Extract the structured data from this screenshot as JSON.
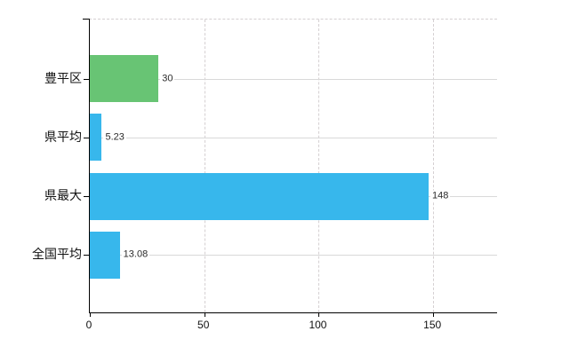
{
  "chart_data": {
    "type": "bar",
    "orientation": "horizontal",
    "title": "",
    "xlabel": "",
    "ylabel": "",
    "categories": [
      "豊平区",
      "県平均",
      "県最大",
      "全国平均"
    ],
    "values": [
      30,
      5.23,
      148,
      13.08
    ],
    "value_labels": [
      "30",
      "5.23",
      "148",
      "13.08"
    ],
    "bar_colors": [
      "#68c474",
      "#37b7ec",
      "#37b7ec",
      "#37b7ec"
    ],
    "xlim": [
      0,
      177.5
    ],
    "x_ticks": [
      0,
      50,
      100,
      150
    ],
    "x_tick_labels": [
      "0",
      "50",
      "100",
      "150"
    ],
    "grid": "dashed vertical gridlines at x ticks, dashed top boundary, solid light leader line per category row",
    "legend": "none",
    "background": "#ffffff"
  },
  "colors": {
    "axis": "#000000",
    "grid_dashed": "#d5d0d2",
    "row_line": "#d9d9d9",
    "value_text": "#2b2b2b",
    "label_text": "#111111",
    "green_bar": "#68c474",
    "blue_bar": "#37b7ec"
  }
}
